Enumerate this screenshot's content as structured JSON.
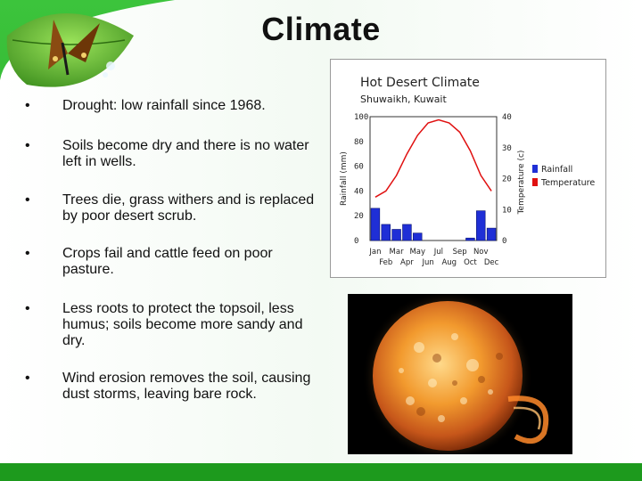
{
  "slide": {
    "title": "Climate",
    "bullets": [
      "Drought: low rainfall since 1968.",
      "Soils become dry and there is no water left in wells.",
      "Trees die, grass withers and is replaced by poor desert scrub.",
      "Crops fail and cattle feed on poor pasture.",
      "Less roots to protect the topsoil, less humus; soils become more sandy and dry.",
      "Wind erosion removes the soil, causing dust storms, leaving bare rock."
    ],
    "bullet_symbol": "•"
  },
  "colors": {
    "background_green": "#32b432",
    "rainfall_bar": "#1f2fd6",
    "temperature_line": "#e01010",
    "bottom_bar": "#1d9a1d"
  },
  "chart_data": {
    "type": "bar",
    "title": "Hot Desert Climate",
    "subtitle": "Shuwaikh, Kuwait",
    "categories": [
      "Jan",
      "Feb",
      "Mar",
      "Apr",
      "May",
      "Jun",
      "Jul",
      "Aug",
      "Sep",
      "Oct",
      "Nov",
      "Dec"
    ],
    "series": [
      {
        "name": "Rainfall",
        "type": "bar",
        "axis": "left",
        "values": [
          26,
          13,
          9,
          13,
          6,
          0,
          0,
          0,
          0,
          2,
          24,
          10
        ]
      },
      {
        "name": "Temperature",
        "type": "line",
        "axis": "right",
        "values": [
          14,
          16,
          21,
          28,
          34,
          38,
          39,
          38,
          35,
          29,
          21,
          16
        ]
      }
    ],
    "ylabel": "Rainfall (mm)",
    "y2label": "Temperature (c)",
    "ylim": [
      0,
      100
    ],
    "y2lim": [
      0,
      40
    ],
    "yticks": [
      "100",
      "80",
      "60",
      "40",
      "20",
      "0"
    ],
    "y2ticks": [
      "40",
      "30",
      "20",
      "10",
      "0"
    ],
    "xticks_row1": [
      "Jan",
      "Mar",
      "May",
      "Jul",
      "Sep",
      "Nov"
    ],
    "xticks_row2": [
      "Feb",
      "Apr",
      "Jun",
      "Aug",
      "Oct",
      "Dec"
    ],
    "legend_position": "right"
  }
}
